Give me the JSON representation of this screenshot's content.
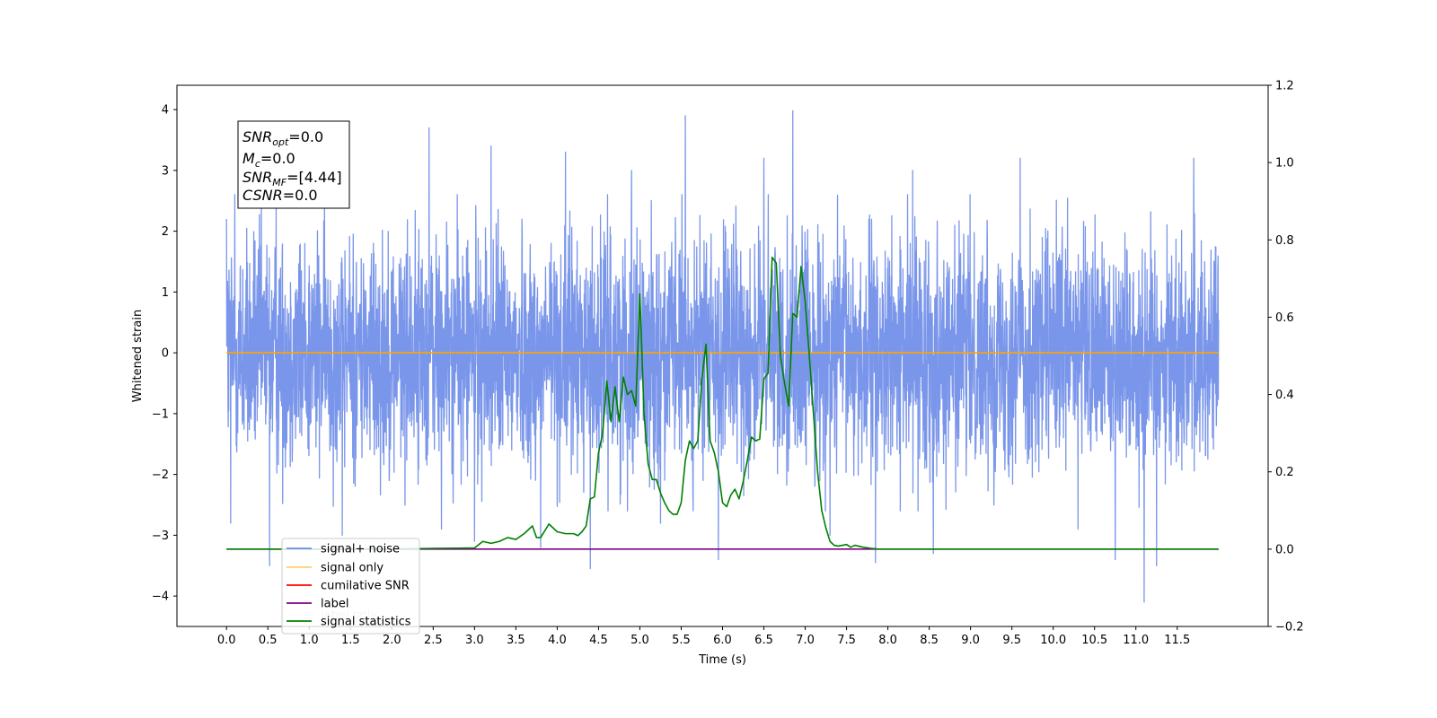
{
  "chart_data": {
    "type": "line",
    "xlabel": "Time (s)",
    "ylabel": "Whitened strain",
    "xlim": [
      -0.6,
      12.6
    ],
    "ylim": [
      -4.5,
      4.4
    ],
    "y2lim": [
      -0.2,
      1.2
    ],
    "x_ticks": [
      "0.0",
      "0.5",
      "1.0",
      "1.5",
      "2.0",
      "2.5",
      "3.0",
      "3.5",
      "4.0",
      "4.5",
      "5.0",
      "5.5",
      "6.0",
      "6.5",
      "7.0",
      "7.5",
      "8.0",
      "8.5",
      "9.0",
      "9.5",
      "10.0",
      "10.5",
      "11.0",
      "11.5"
    ],
    "y_ticks": [
      "4",
      "3",
      "2",
      "1",
      "0",
      "−1",
      "−2",
      "−3",
      "−4"
    ],
    "y2_ticks": [
      "1.2",
      "1.0",
      "0.8",
      "0.6",
      "0.4",
      "0.2",
      "0.0",
      "−0.2"
    ],
    "annotation": {
      "lines": [
        {
          "base": "SNR",
          "sub": "opt",
          "rest": "=0.0"
        },
        {
          "base": "M",
          "sub": "c",
          "rest": "=0.0"
        },
        {
          "base": "SNR",
          "sub": "MF",
          "rest": "=[4.44]"
        },
        {
          "base": "CSNR",
          "sub": "",
          "rest": "=0.0"
        }
      ]
    },
    "legend_placement": "lower-left",
    "legend": [
      {
        "label": "signal+ noise",
        "color": "#4169e1"
      },
      {
        "label": "signal only",
        "color": "#ffa500"
      },
      {
        "label": "cumilative SNR",
        "color": "#ff0000"
      },
      {
        "label": "label",
        "color": "#800080"
      },
      {
        "label": "signal statistics",
        "color": "#008000"
      }
    ],
    "legend_overlap_text": "label only",
    "series": [
      {
        "name": "signal+ noise",
        "color": "#4169e1",
        "axis": "left",
        "x_range": [
          0.0,
          12.0
        ],
        "sample_rate_hz": 340,
        "std": 0.95,
        "extremes": {
          "max": 3.98,
          "min": -4.1
        },
        "spikes": [
          [
            0.0,
            2.2
          ],
          [
            0.1,
            2.6
          ],
          [
            0.05,
            -2.8
          ],
          [
            0.52,
            -3.5
          ],
          [
            0.6,
            2.4
          ],
          [
            1.4,
            -3.0
          ],
          [
            2.45,
            3.7
          ],
          [
            2.6,
            -2.9
          ],
          [
            3.0,
            -3.1
          ],
          [
            3.2,
            3.4
          ],
          [
            3.8,
            -3.2
          ],
          [
            4.1,
            3.3
          ],
          [
            4.4,
            -3.55
          ],
          [
            4.9,
            3.0
          ],
          [
            5.25,
            -2.8
          ],
          [
            5.55,
            3.9
          ],
          [
            5.95,
            -3.4
          ],
          [
            6.5,
            3.2
          ],
          [
            6.85,
            3.98
          ],
          [
            7.3,
            -3.0
          ],
          [
            7.85,
            -3.45
          ],
          [
            8.3,
            3.0
          ],
          [
            8.55,
            -3.3
          ],
          [
            9.6,
            3.2
          ],
          [
            10.3,
            -2.9
          ],
          [
            10.75,
            -3.4
          ],
          [
            11.1,
            -4.1
          ],
          [
            11.25,
            -3.5
          ],
          [
            11.7,
            3.2
          ]
        ]
      },
      {
        "name": "signal only",
        "color": "#ffa500",
        "axis": "left",
        "x": [
          0.0,
          12.0
        ],
        "y": [
          0.0,
          0.0
        ]
      },
      {
        "name": "label",
        "color": "#800080",
        "axis": "right",
        "x": [
          0.0,
          12.0
        ],
        "y": [
          0.0,
          0.0
        ]
      },
      {
        "name": "signal statistics",
        "color": "#008000",
        "axis": "right",
        "x": [
          0.0,
          2.0,
          2.5,
          3.0,
          3.1,
          3.2,
          3.3,
          3.4,
          3.5,
          3.6,
          3.7,
          3.75,
          3.8,
          3.9,
          4.0,
          4.1,
          4.2,
          4.25,
          4.3,
          4.35,
          4.4,
          4.45,
          4.5,
          4.55,
          4.6,
          4.65,
          4.7,
          4.75,
          4.8,
          4.85,
          4.9,
          4.95,
          5.0,
          5.05,
          5.1,
          5.15,
          5.2,
          5.25,
          5.3,
          5.35,
          5.4,
          5.45,
          5.5,
          5.55,
          5.6,
          5.65,
          5.7,
          5.75,
          5.8,
          5.85,
          5.9,
          5.95,
          6.0,
          6.05,
          6.1,
          6.15,
          6.2,
          6.25,
          6.3,
          6.35,
          6.4,
          6.45,
          6.5,
          6.55,
          6.6,
          6.65,
          6.7,
          6.75,
          6.8,
          6.85,
          6.9,
          6.95,
          7.0,
          7.05,
          7.1,
          7.15,
          7.2,
          7.25,
          7.3,
          7.35,
          7.4,
          7.45,
          7.5,
          7.55,
          7.6,
          7.7,
          7.8,
          7.9,
          8.0,
          8.2,
          8.5,
          9.0,
          12.0
        ],
        "y": [
          0.0,
          0.0,
          0.002,
          0.003,
          0.02,
          0.015,
          0.02,
          0.03,
          0.025,
          0.04,
          0.06,
          0.03,
          0.03,
          0.065,
          0.045,
          0.04,
          0.04,
          0.035,
          0.045,
          0.06,
          0.13,
          0.135,
          0.25,
          0.3,
          0.435,
          0.33,
          0.42,
          0.33,
          0.445,
          0.4,
          0.41,
          0.37,
          0.66,
          0.35,
          0.22,
          0.18,
          0.18,
          0.145,
          0.12,
          0.1,
          0.09,
          0.09,
          0.12,
          0.23,
          0.28,
          0.26,
          0.28,
          0.44,
          0.53,
          0.28,
          0.25,
          0.2,
          0.12,
          0.11,
          0.14,
          0.155,
          0.13,
          0.175,
          0.23,
          0.29,
          0.28,
          0.285,
          0.44,
          0.455,
          0.755,
          0.74,
          0.5,
          0.43,
          0.37,
          0.61,
          0.6,
          0.73,
          0.64,
          0.5,
          0.35,
          0.2,
          0.1,
          0.055,
          0.02,
          0.01,
          0.008,
          0.01,
          0.012,
          0.005,
          0.01,
          0.005,
          0.002,
          0.0,
          0.0,
          0.0,
          0.0,
          0.0,
          0.0
        ]
      }
    ]
  }
}
